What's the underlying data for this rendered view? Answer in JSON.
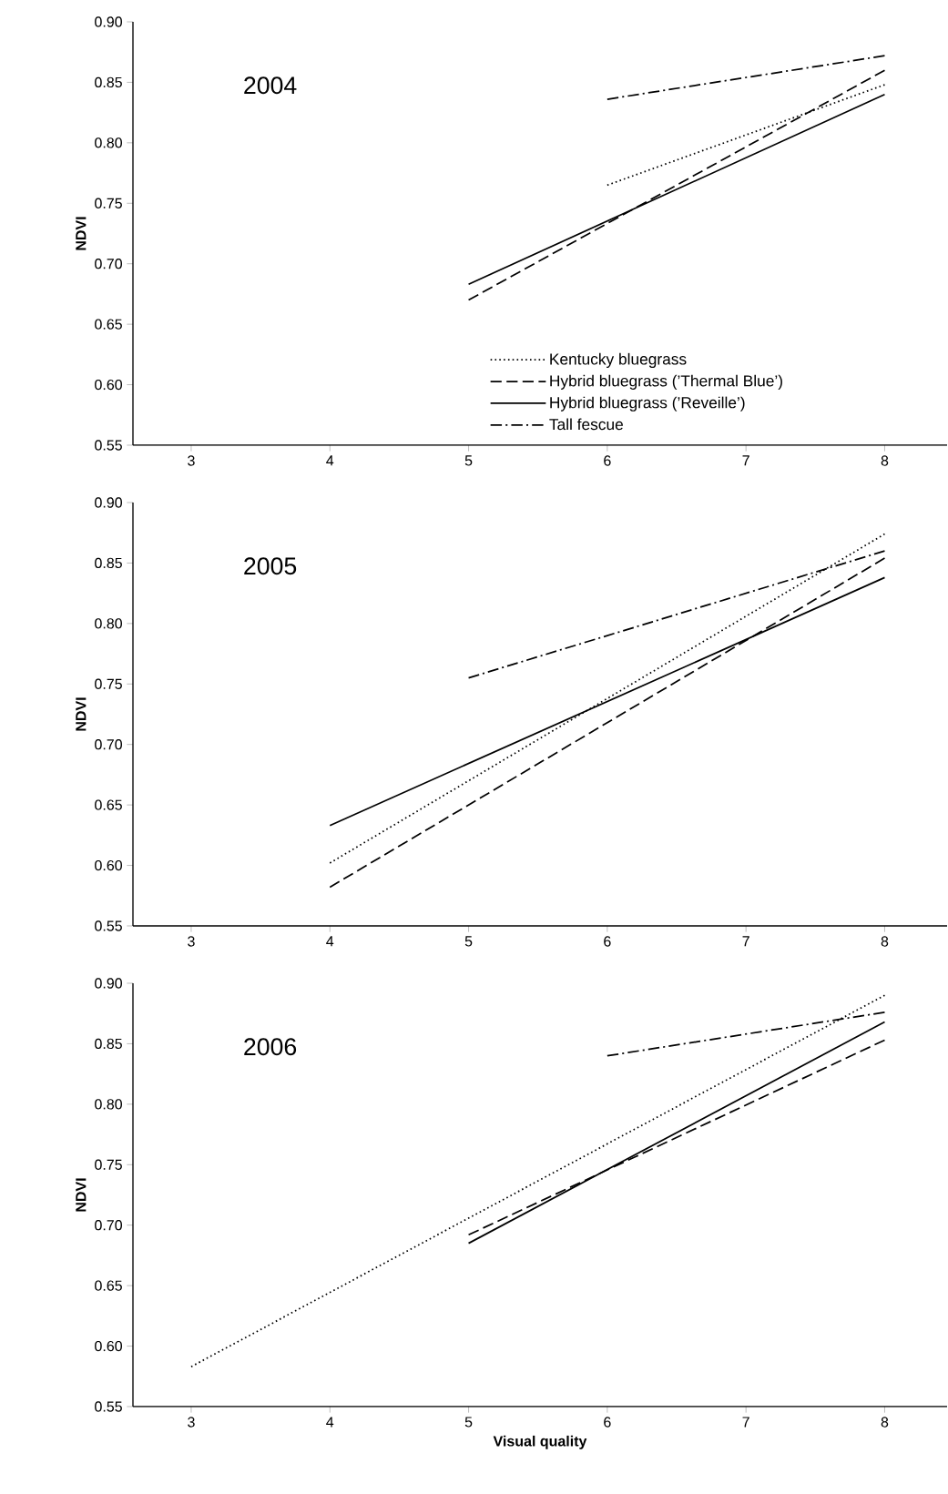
{
  "chart_data": [
    {
      "type": "line",
      "ylabel": "NDVI",
      "annotations": [
        "2004"
      ],
      "xlim": [
        2.58,
        8.45
      ],
      "ylim": [
        0.55,
        0.9
      ],
      "xticks": [
        3,
        4,
        5,
        6,
        7,
        8
      ],
      "yticks": [
        {
          "value": 0.55,
          "label": "0.55"
        },
        {
          "value": 0.6,
          "label": "0.60"
        },
        {
          "value": 0.65,
          "label": "0.65"
        },
        {
          "value": 0.7,
          "label": "0.70"
        },
        {
          "value": 0.75,
          "label": "0.75"
        },
        {
          "value": 0.8,
          "label": "0.80"
        },
        {
          "value": 0.85,
          "label": "0.85"
        },
        {
          "value": 0.9,
          "label": "0.90"
        }
      ],
      "legend": "bottom",
      "grid": false,
      "marker": "none",
      "series": [
        {
          "name": "Kentucky bluegrass",
          "color": "#000000",
          "line_style": "dotted",
          "x": [
            6,
            8
          ],
          "values": [
            0.765,
            0.848
          ]
        },
        {
          "name": "Hybrid bluegrass (’Thermal Blue’)",
          "color": "#000000",
          "line_style": "dashed",
          "x": [
            5,
            8
          ],
          "values": [
            0.67,
            0.86
          ]
        },
        {
          "name": "Hybrid bluegrass (’Reveille’)",
          "color": "#000000",
          "line_style": "solid",
          "x": [
            5,
            8
          ],
          "values": [
            0.683,
            0.84
          ]
        },
        {
          "name": "Tall fescue",
          "color": "#000000",
          "line_style": "dashdot",
          "x": [
            6,
            8
          ],
          "values": [
            0.836,
            0.872
          ]
        }
      ]
    },
    {
      "type": "line",
      "ylabel": "NDVI",
      "annotations": [
        "2005"
      ],
      "xlim": [
        2.58,
        8.45
      ],
      "ylim": [
        0.55,
        0.9
      ],
      "xticks": [
        3,
        4,
        5,
        6,
        7,
        8
      ],
      "yticks": [
        {
          "value": 0.55,
          "label": "0.55"
        },
        {
          "value": 0.6,
          "label": "0.60"
        },
        {
          "value": 0.65,
          "label": "0.65"
        },
        {
          "value": 0.7,
          "label": "0.70"
        },
        {
          "value": 0.75,
          "label": "0.75"
        },
        {
          "value": 0.8,
          "label": "0.80"
        },
        {
          "value": 0.85,
          "label": "0.85"
        },
        {
          "value": 0.9,
          "label": "0.90"
        }
      ],
      "grid": false,
      "marker": "none",
      "series": [
        {
          "color": "#000000",
          "line_style": "dotted",
          "x": [
            4,
            8
          ],
          "values": [
            0.602,
            0.874
          ]
        },
        {
          "color": "#000000",
          "line_style": "dashed",
          "x": [
            4,
            8
          ],
          "values": [
            0.582,
            0.854
          ]
        },
        {
          "color": "#000000",
          "line_style": "solid",
          "x": [
            4,
            8
          ],
          "values": [
            0.633,
            0.838
          ]
        },
        {
          "color": "#000000",
          "line_style": "dashdot",
          "x": [
            5,
            8
          ],
          "values": [
            0.755,
            0.86
          ]
        }
      ]
    },
    {
      "type": "line",
      "xlabel": "Visual quality",
      "ylabel": "NDVI",
      "annotations": [
        "2006"
      ],
      "xlim": [
        2.58,
        8.45
      ],
      "ylim": [
        0.55,
        0.9
      ],
      "xticks": [
        3,
        4,
        5,
        6,
        7,
        8
      ],
      "yticks": [
        {
          "value": 0.55,
          "label": "0.55"
        },
        {
          "value": 0.6,
          "label": "0.60"
        },
        {
          "value": 0.65,
          "label": "0.65"
        },
        {
          "value": 0.7,
          "label": "0.70"
        },
        {
          "value": 0.75,
          "label": "0.75"
        },
        {
          "value": 0.8,
          "label": "0.80"
        },
        {
          "value": 0.85,
          "label": "0.85"
        },
        {
          "value": 0.9,
          "label": "0.90"
        }
      ],
      "grid": false,
      "marker": "none",
      "series": [
        {
          "color": "#000000",
          "line_style": "dotted",
          "x": [
            3,
            8
          ],
          "values": [
            0.583,
            0.89
          ]
        },
        {
          "color": "#000000",
          "line_style": "dashed",
          "x": [
            5,
            8
          ],
          "values": [
            0.692,
            0.853
          ]
        },
        {
          "color": "#000000",
          "line_style": "solid",
          "x": [
            5,
            8
          ],
          "values": [
            0.685,
            0.868
          ]
        },
        {
          "color": "#000000",
          "line_style": "dashdot",
          "x": [
            6,
            8
          ],
          "values": [
            0.84,
            0.876
          ]
        }
      ]
    }
  ]
}
